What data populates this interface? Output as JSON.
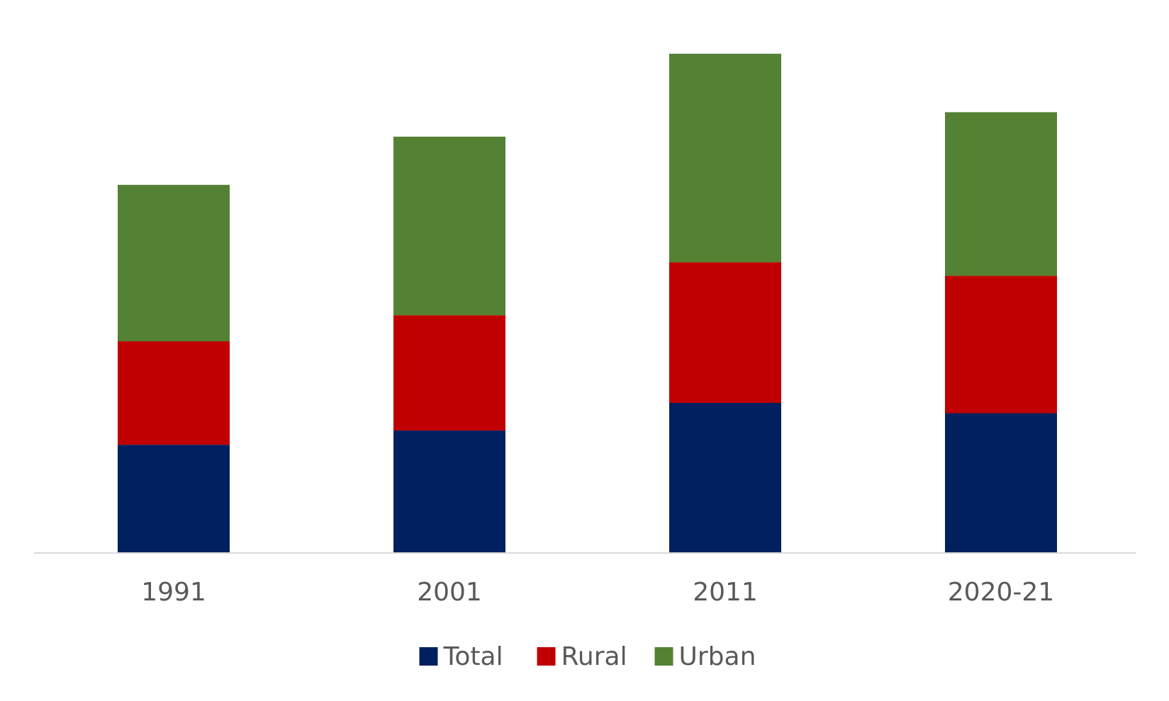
{
  "chart_data": {
    "type": "bar",
    "stacked": true,
    "categories": [
      "1991",
      "2001",
      "2011",
      "2020-21"
    ],
    "series": [
      {
        "name": "Total",
        "color": "#002060",
        "values": [
          13.7,
          15.5,
          19.0,
          17.7
        ]
      },
      {
        "name": "Rural",
        "color": "#C00000",
        "values": [
          13.1,
          14.6,
          17.8,
          17.4
        ]
      },
      {
        "name": "Urban",
        "color": "#548235",
        "values": [
          19.8,
          22.6,
          26.4,
          20.7
        ]
      }
    ],
    "title": "",
    "xlabel": "",
    "ylabel": "",
    "ylim": [
      0,
      70
    ],
    "grid": false,
    "legend": "bottom-center"
  }
}
